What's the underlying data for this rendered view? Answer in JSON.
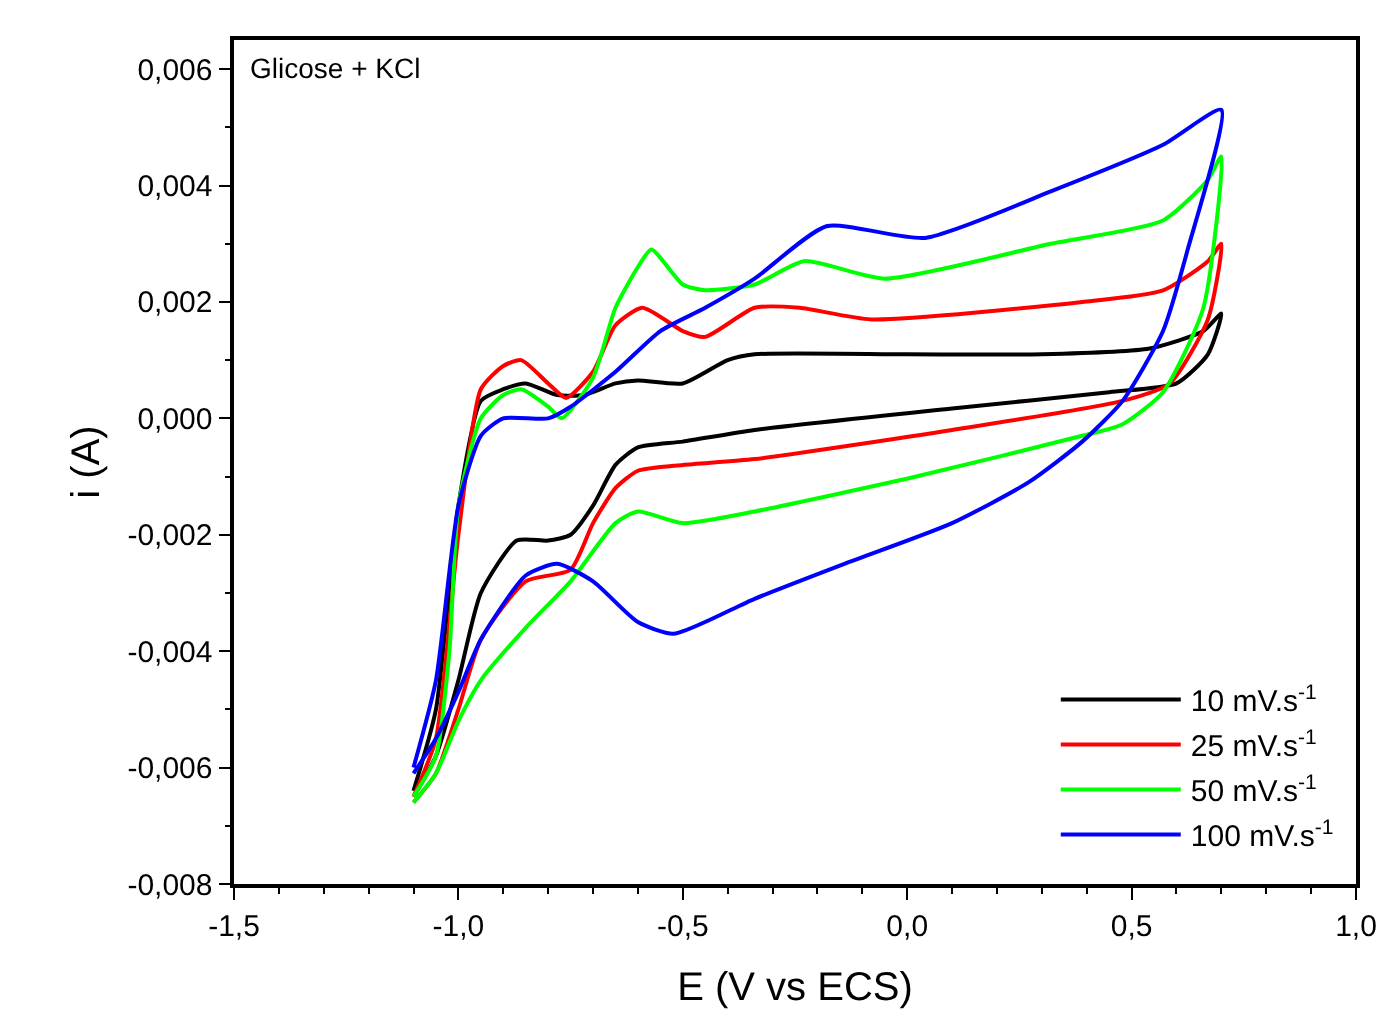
{
  "chart_data": {
    "type": "line",
    "xlabel": "E (V vs ECS)",
    "ylabel": "i (A)",
    "annotations": [
      "Glicose + KCl"
    ],
    "xlim": [
      -1.5,
      1.0
    ],
    "xticks": [
      {
        "value": -1.5,
        "label": "-1,5"
      },
      {
        "value": -1.0,
        "label": "-1,0"
      },
      {
        "value": -0.5,
        "label": "-0,5"
      },
      {
        "value": 0.0,
        "label": "0,0"
      },
      {
        "value": 0.5,
        "label": "0,5"
      },
      {
        "value": 1.0,
        "label": "1,0"
      }
    ],
    "ylim": [
      -0.008,
      0.0065
    ],
    "yticks": [
      {
        "value": -0.008,
        "label": "-0,008"
      },
      {
        "value": -0.006,
        "label": "-0,006"
      },
      {
        "value": -0.004,
        "label": "-0,004"
      },
      {
        "value": -0.002,
        "label": "-0,002"
      },
      {
        "value": 0.0,
        "label": "0,000"
      },
      {
        "value": 0.002,
        "label": "0,002"
      },
      {
        "value": 0.004,
        "label": "0,004"
      },
      {
        "value": 0.006,
        "label": "0,006"
      }
    ],
    "legend": "bottom right",
    "marker": "none",
    "line_style": "solid",
    "series": [
      {
        "name": "10 mV.s$^{-1}$",
        "color": "#000000",
        "x": [
          -1.1,
          -1.05,
          -1.0,
          -0.95,
          -0.9,
          -0.85,
          -0.78,
          -0.72,
          -0.65,
          -0.6,
          -0.5,
          -0.4,
          -0.34,
          0.0,
          0.3,
          0.54,
          0.66,
          0.7,
          0.67,
          0.6,
          0.45,
          0.1,
          -0.34,
          -0.5,
          -0.6,
          -0.65,
          -0.7,
          -0.75,
          -0.8,
          -0.87,
          -0.95,
          -1.0,
          -1.05,
          -1.1
        ],
        "values": [
          -0.0064,
          -0.005,
          -0.0015,
          0.0003,
          0.0005,
          0.0006,
          0.0004,
          0.0004,
          0.0006,
          0.00065,
          0.0006,
          0.001,
          0.0011,
          0.0011,
          0.0011,
          0.0012,
          0.0015,
          0.0018,
          0.0011,
          0.0006,
          0.00045,
          0.00017,
          -0.0002,
          -0.0004,
          -0.0005,
          -0.0008,
          -0.0015,
          -0.002,
          -0.0021,
          -0.0021,
          -0.003,
          -0.0045,
          -0.0058,
          -0.0065
        ]
      },
      {
        "name": "25 mV.s$^{-1}$",
        "color": "#ff0000",
        "x": [
          -1.1,
          -1.05,
          -1.0,
          -0.95,
          -0.9,
          -0.86,
          -0.8,
          -0.76,
          -0.7,
          -0.65,
          -0.59,
          -0.5,
          -0.45,
          -0.34,
          -0.24,
          -0.08,
          0.39,
          0.57,
          0.67,
          0.7,
          0.67,
          0.585,
          0.48,
          0.1,
          -0.34,
          -0.5,
          -0.6,
          -0.65,
          -0.7,
          -0.75,
          -0.85,
          -0.95,
          -1.0,
          -1.05,
          -1.1
        ],
        "values": [
          -0.0065,
          -0.0055,
          -0.002,
          0.0005,
          0.0009,
          0.001,
          0.0006,
          0.00035,
          0.0008,
          0.0016,
          0.0019,
          0.0015,
          0.0014,
          0.0019,
          0.0019,
          0.0017,
          0.002,
          0.0022,
          0.0027,
          0.003,
          0.0017,
          0.0006,
          0.0003,
          -0.0002,
          -0.0007,
          -0.0008,
          -0.0009,
          -0.0012,
          -0.0018,
          -0.0026,
          -0.0028,
          -0.0038,
          -0.005,
          -0.0061,
          -0.0066
        ]
      },
      {
        "name": "50 mV.s$^{-1}$",
        "color": "#00ff00",
        "x": [
          -1.1,
          -1.05,
          -1.02,
          -1.0,
          -0.95,
          -0.9,
          -0.86,
          -0.8,
          -0.77,
          -0.7,
          -0.65,
          -0.6,
          -0.57,
          -0.5,
          -0.45,
          -0.34,
          -0.23,
          -0.05,
          0.32,
          0.57,
          0.67,
          0.7,
          0.66,
          0.57,
          0.48,
          0.39,
          0.02,
          -0.34,
          -0.5,
          -0.6,
          -0.65,
          -0.75,
          -0.85,
          -0.95,
          -1.0,
          -1.05,
          -1.1
        ],
        "values": [
          -0.0065,
          -0.0058,
          -0.004,
          -0.0015,
          0.0,
          0.0004,
          0.0005,
          0.0002,
          0.0,
          0.0007,
          0.0019,
          0.0026,
          0.0029,
          0.0023,
          0.0022,
          0.0023,
          0.0027,
          0.0024,
          0.003,
          0.0034,
          0.0041,
          0.0045,
          0.0019,
          0.00045,
          -0.0001,
          -0.0003,
          -0.001,
          -0.0016,
          -0.0018,
          -0.0016,
          -0.0018,
          -0.0028,
          -0.0036,
          -0.0045,
          -0.0052,
          -0.0061,
          -0.0066
        ]
      },
      {
        "name": "100 mV.s$^{-1}$",
        "color": "#0000ff",
        "x": [
          -1.1,
          -1.05,
          -1.0,
          -0.95,
          -0.9,
          -0.8,
          -0.75,
          -0.65,
          -0.55,
          -0.45,
          -0.34,
          -0.18,
          0.04,
          0.32,
          0.57,
          0.7,
          0.625,
          0.57,
          0.48,
          0.39,
          0.27,
          0.1,
          -0.14,
          -0.34,
          -0.52,
          -0.6,
          -0.7,
          -0.78,
          -0.85,
          -0.95,
          -1.0,
          -1.05,
          -1.1
        ],
        "values": [
          -0.006,
          -0.0045,
          -0.0015,
          -0.0003,
          0.0,
          0.0,
          0.0002,
          0.0008,
          0.0015,
          0.0019,
          0.0024,
          0.0033,
          0.0031,
          0.0039,
          0.0047,
          0.0053,
          0.0029,
          0.0015,
          0.0003,
          -0.0004,
          -0.0011,
          -0.0018,
          -0.0025,
          -0.0031,
          -0.0037,
          -0.0035,
          -0.0028,
          -0.0025,
          -0.0027,
          -0.0038,
          -0.0047,
          -0.0055,
          -0.0061
        ]
      }
    ]
  }
}
